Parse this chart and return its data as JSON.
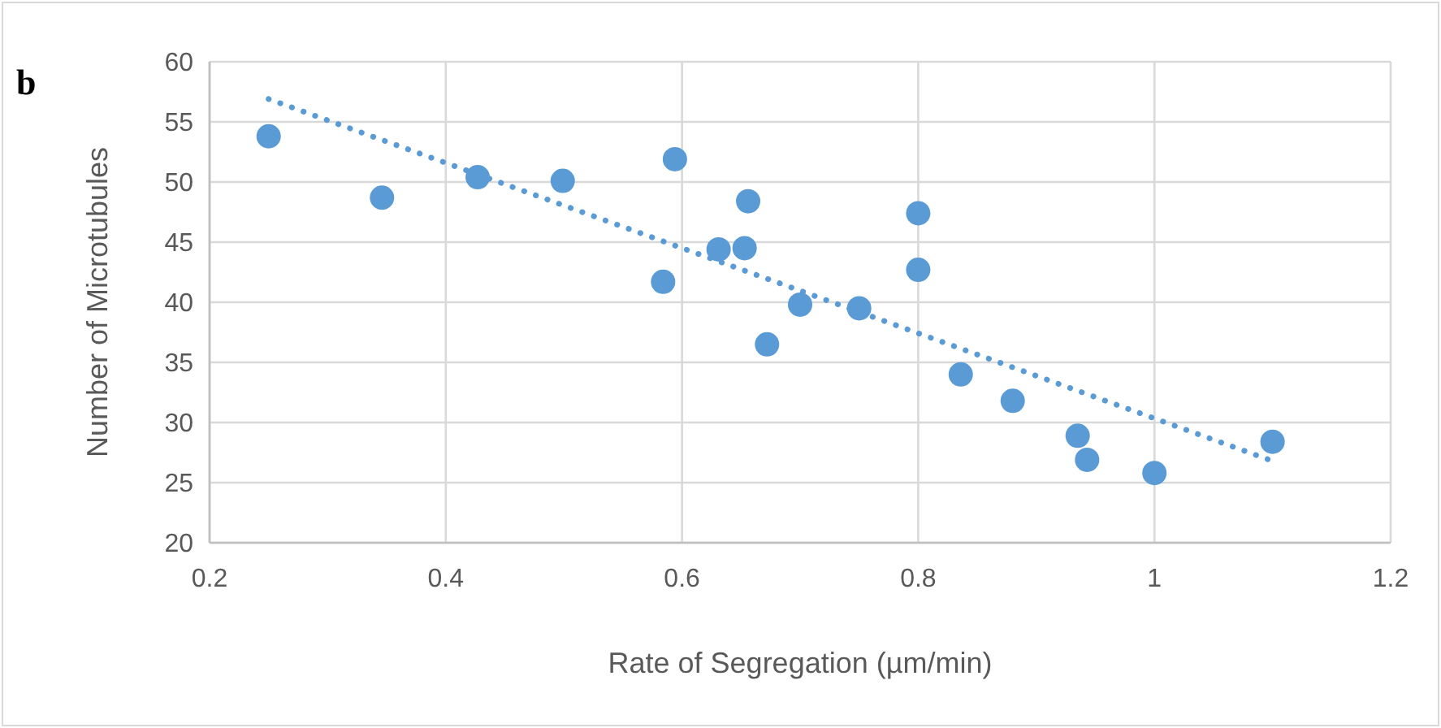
{
  "chart_data": {
    "type": "scatter",
    "xlabel": "Rate of Segregation (µm/min)",
    "ylabel": "Number of Microtubules",
    "annotations": [
      "b"
    ],
    "xlim": [
      0.2,
      1.2
    ],
    "xticks": [
      0.2,
      0.4,
      0.6,
      0.8,
      1,
      1.2
    ],
    "ylim": [
      20,
      60
    ],
    "yticks": [
      20,
      25,
      30,
      35,
      40,
      45,
      50,
      55,
      60
    ],
    "grid": true,
    "marker": "circle",
    "series": [
      {
        "color": "#5b9bd5",
        "x": [
          0.25,
          0.346,
          0.427,
          0.499,
          0.594,
          0.584,
          0.631,
          0.653,
          0.656,
          0.672,
          0.7,
          0.75,
          0.8,
          0.8,
          0.836,
          0.88,
          0.935,
          0.943,
          1,
          1.1
        ],
        "values": [
          53.8,
          48.7,
          50.4,
          50.1,
          51.9,
          41.7,
          44.4,
          44.5,
          48.4,
          36.5,
          39.8,
          39.5,
          47.4,
          42.7,
          34,
          31.8,
          28.9,
          26.9,
          25.8,
          28.4
        ]
      },
      {
        "type": "line",
        "color": "#5b9bd5",
        "marker": "none",
        "line_style": "dotted",
        "x": [
          0.25,
          1.1
        ],
        "values": [
          56.9,
          26.8
        ]
      }
    ]
  }
}
